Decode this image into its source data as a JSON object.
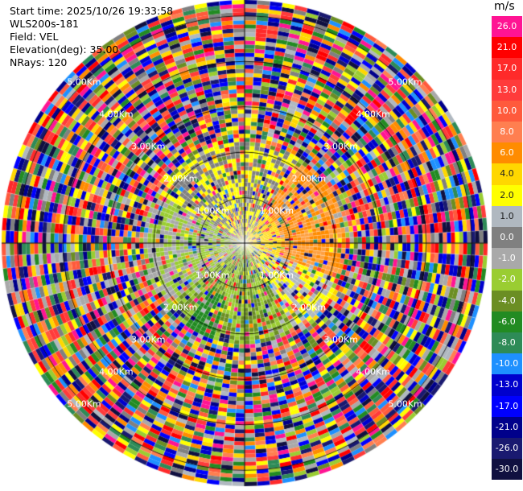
{
  "header": {
    "start_time": "Start time: 2025/10/26 19:33:58",
    "site": "WLS200s-181",
    "field": "Field: VEL",
    "elevation": "Elevation(deg): 35.00",
    "nrays": "NRays: 120"
  },
  "range_rings": [
    {
      "label": "1.00Km",
      "range_km": 1
    },
    {
      "label": "2.00Km",
      "range_km": 2
    },
    {
      "label": "3.00Km",
      "range_km": 3
    },
    {
      "label": "4.00Km",
      "range_km": 4
    },
    {
      "label": "5.00Km",
      "range_km": 5
    }
  ],
  "colorbar": {
    "unit": "m/s",
    "labels": [
      "26.0",
      "21.0",
      "17.0",
      "13.0",
      "10.0",
      "8.0",
      "6.0",
      "4.0",
      "2.0",
      "1.0",
      "0.0",
      "-1.0",
      "-2.0",
      "-4.0",
      "-6.0",
      "-8.0",
      "-10.0",
      "-13.0",
      "-17.0",
      "-21.0",
      "-26.0",
      "-30.0"
    ],
    "colors": [
      "#ff1493",
      "#ff0000",
      "#ff2a2a",
      "#ff3b3b",
      "#ff5a3c",
      "#ff7f50",
      "#ff8c00",
      "#ffd700",
      "#ffff00",
      "#b0b8c0",
      "#808080",
      "#a9a9a9",
      "#9acd32",
      "#6b8e23",
      "#228b22",
      "#2e8b57",
      "#1e90ff",
      "#0000cd",
      "#0000ff",
      "#00008b",
      "#191970",
      "#101040"
    ]
  }
}
